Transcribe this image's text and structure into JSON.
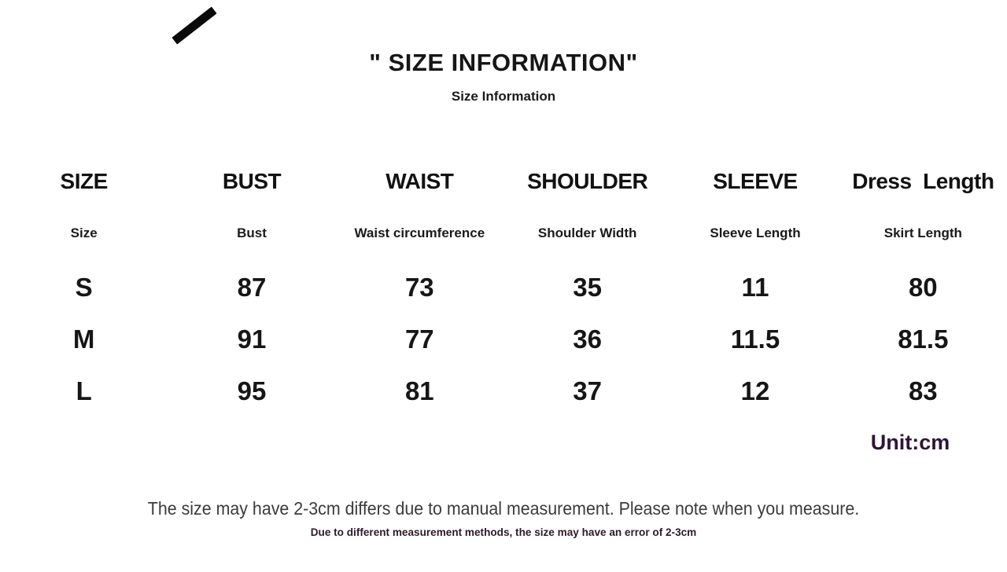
{
  "header": {
    "title": "\" SIZE INFORMATION\"",
    "subtitle": "Size Information"
  },
  "decoration": {
    "slash_icon": "diagonal-slash"
  },
  "size_table": {
    "column_headers": [
      "SIZE",
      "BUST",
      "WAIST",
      "SHOULDER",
      "SLEEVE",
      "Dress  Length"
    ],
    "column_subheaders": [
      "Size",
      "Bust",
      "Waist circumference",
      "Shoulder Width",
      "Sleeve Length",
      "Skirt Length"
    ],
    "rows": [
      [
        "S",
        "87",
        "73",
        "35",
        "11",
        "80"
      ],
      [
        "M",
        "91",
        "77",
        "36",
        "11.5",
        "81.5"
      ],
      [
        "L",
        "95",
        "81",
        "37",
        "12",
        "83"
      ]
    ],
    "unit_label": "Unit:cm"
  },
  "footer": {
    "note_primary": "The size may have 2-3cm differs due to manual measurement. Please note when you measure.",
    "note_secondary": "Due to different measurement methods, the size may have an error of 2-3cm"
  },
  "colors": {
    "background": "#ffffff",
    "text_primary": "#161616",
    "unit_accent": "#301438",
    "note_primary_text": "#3b3b3b",
    "note_secondary_text": "#2e1a2e"
  }
}
